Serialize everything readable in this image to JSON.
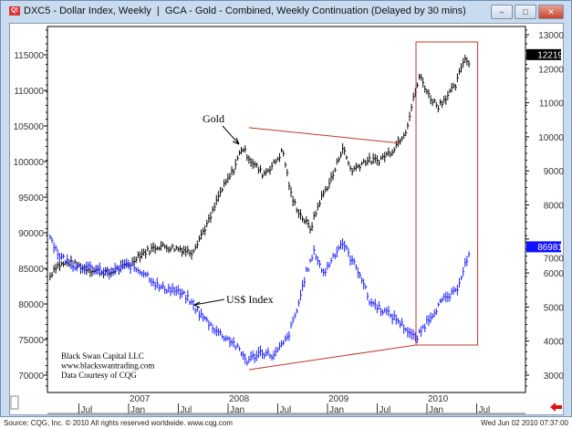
{
  "window": {
    "title": "DXC5 - Dollar Index, Weekly  |  GCA - Gold - Combined, Weekly Continuation (Delayed by 30 mins)",
    "icon": "cqg-app-icon",
    "minimize": "–",
    "maximize": "□",
    "close": "✕"
  },
  "footer": {
    "source": "Source: CQG, Inc. © 2010 All rights reserved worldwide. www.cqg.com",
    "timestamp": "Wed Jun 02 2010 07:37:00"
  },
  "colors": {
    "gold": "#000000",
    "dollar": "#1a1aff",
    "annotation": "#c0392b"
  },
  "chart_data": {
    "type": "ohlc",
    "x_unit": "year",
    "xlim": [
      2006.0,
      2010.8
    ],
    "left_axis": {
      "name": "US$ Index",
      "ylim": [
        68000,
        117500
      ],
      "ticks": [
        70000,
        75000,
        80000,
        85000,
        90000,
        95000,
        100000,
        105000,
        110000,
        115000
      ]
    },
    "right_axis": {
      "name": "Gold",
      "ylim": [
        2000,
        13300
      ],
      "ticks": [
        3000,
        4000,
        5000,
        6000,
        7000,
        8000,
        9000,
        10000,
        11000,
        12000,
        13000
      ]
    },
    "x_ticks": [
      {
        "t": 2006.5,
        "label": "Jul"
      },
      {
        "t": 2007.0,
        "label": "Jan"
      },
      {
        "t": 2007.5,
        "label": "Jul"
      },
      {
        "t": 2008.0,
        "label": "Jan"
      },
      {
        "t": 2008.5,
        "label": "Jul"
      },
      {
        "t": 2009.0,
        "label": "Jan"
      },
      {
        "t": 2009.5,
        "label": "Jul"
      },
      {
        "t": 2010.0,
        "label": "Jan"
      },
      {
        "t": 2010.5,
        "label": "Jul"
      }
    ],
    "year_labels": [
      {
        "t": 2007.0,
        "label": "2007"
      },
      {
        "t": 2008.0,
        "label": "2008"
      },
      {
        "t": 2009.0,
        "label": "2009"
      },
      {
        "t": 2010.0,
        "label": "2010"
      }
    ],
    "series": [
      {
        "name": "Gold",
        "axis": "right",
        "last": "12219",
        "points": [
          [
            2006.21,
            5900
          ],
          [
            2006.26,
            6200
          ],
          [
            2006.4,
            6300
          ],
          [
            2006.62,
            6100
          ],
          [
            2006.8,
            6000
          ],
          [
            2007.04,
            6300
          ],
          [
            2007.08,
            6500
          ],
          [
            2007.3,
            6800
          ],
          [
            2007.54,
            6700
          ],
          [
            2007.63,
            6600
          ],
          [
            2007.82,
            7600
          ],
          [
            2007.91,
            8300
          ],
          [
            2008.05,
            9000
          ],
          [
            2008.14,
            9700
          ],
          [
            2008.23,
            9300
          ],
          [
            2008.35,
            8900
          ],
          [
            2008.46,
            9200
          ],
          [
            2008.55,
            9600
          ],
          [
            2008.64,
            8200
          ],
          [
            2008.73,
            7700
          ],
          [
            2008.83,
            7300
          ],
          [
            2008.92,
            8100
          ],
          [
            2009.06,
            8900
          ],
          [
            2009.15,
            9700
          ],
          [
            2009.24,
            9000
          ],
          [
            2009.38,
            9300
          ],
          [
            2009.51,
            9300
          ],
          [
            2009.65,
            9600
          ],
          [
            2009.79,
            10200
          ],
          [
            2009.88,
            11300
          ],
          [
            2009.93,
            11800
          ],
          [
            2010.02,
            11200
          ],
          [
            2010.11,
            10900
          ],
          [
            2010.2,
            11200
          ],
          [
            2010.29,
            11500
          ],
          [
            2010.37,
            12300
          ],
          [
            2010.43,
            12200
          ]
        ]
      },
      {
        "name": "US$ Index",
        "axis": "left",
        "last": "86981",
        "points": [
          [
            2006.21,
            89500
          ],
          [
            2006.3,
            86800
          ],
          [
            2006.44,
            85500
          ],
          [
            2006.62,
            85000
          ],
          [
            2006.8,
            84300
          ],
          [
            2006.99,
            85500
          ],
          [
            2007.17,
            84300
          ],
          [
            2007.31,
            82300
          ],
          [
            2007.45,
            82000
          ],
          [
            2007.58,
            81000
          ],
          [
            2007.72,
            78500
          ],
          [
            2007.91,
            75900
          ],
          [
            2008.05,
            74600
          ],
          [
            2008.19,
            72000
          ],
          [
            2008.33,
            73300
          ],
          [
            2008.46,
            72700
          ],
          [
            2008.6,
            75300
          ],
          [
            2008.69,
            79000
          ],
          [
            2008.78,
            84200
          ],
          [
            2008.87,
            87400
          ],
          [
            2008.96,
            84200
          ],
          [
            2009.06,
            86800
          ],
          [
            2009.15,
            88700
          ],
          [
            2009.24,
            86200
          ],
          [
            2009.33,
            84200
          ],
          [
            2009.42,
            80400
          ],
          [
            2009.56,
            79100
          ],
          [
            2009.7,
            77800
          ],
          [
            2009.83,
            75900
          ],
          [
            2009.89,
            75000
          ],
          [
            2010.01,
            77800
          ],
          [
            2010.15,
            80400
          ],
          [
            2010.29,
            81700
          ],
          [
            2010.38,
            85500
          ],
          [
            2010.43,
            87000
          ]
        ]
      }
    ],
    "annotations": {
      "gold_label": "Gold",
      "dollar_label": "US$ Index",
      "credit_lines": [
        "Black Swan Capital LLC",
        "www.blackswantrading.com",
        "Data Courtesy of CQG"
      ],
      "gold_trendline": {
        "axis": "right",
        "from": [
          2008.21,
          10270
        ],
        "to": [
          2009.74,
          9810
        ]
      },
      "dollar_trendline": {
        "axis": "left",
        "from": [
          2008.21,
          70770
        ],
        "to": [
          2009.89,
          74230
        ]
      },
      "box": {
        "axis": "left",
        "t": [
          2009.89,
          2010.51
        ],
        "v": [
          74230,
          116800
        ]
      }
    }
  }
}
